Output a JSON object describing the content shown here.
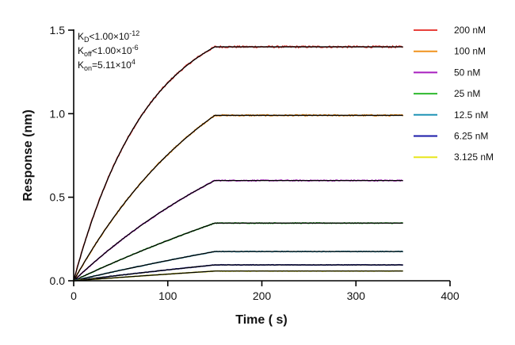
{
  "chart_data": {
    "type": "line",
    "xlabel": "Time ( s)",
    "ylabel": "Response (nm)",
    "xlim": [
      0,
      400
    ],
    "ylim": [
      0,
      1.5
    ],
    "xticks": [
      0,
      100,
      200,
      300,
      400
    ],
    "yticks": [
      0.0,
      0.5,
      1.0,
      1.5
    ],
    "ytick_labels": [
      "0.0",
      "0.5",
      "1.0",
      "1.5"
    ],
    "grid": false,
    "legend_position": "right",
    "association_end": 150,
    "time_end": 350,
    "kinetics": {
      "kd": {
        "prefix": "K",
        "sub": "D",
        "rel": "<",
        "mantissa": "1.00×10",
        "exp": "-12"
      },
      "koff": {
        "prefix": "K",
        "sub": "off",
        "rel": "<",
        "mantissa": "1.00×10",
        "exp": "-6"
      },
      "kon": {
        "prefix": "K",
        "sub": "on",
        "rel": "=",
        "mantissa": "5.11×10",
        "exp": "4"
      }
    },
    "fit_color": "#000000",
    "series": [
      {
        "name": "200 nM",
        "color": "#e8413c",
        "plateau": 1.4,
        "rate": 0.0128
      },
      {
        "name": "100 nM",
        "color": "#f0921e",
        "plateau": 0.99,
        "rate": 0.0062
      },
      {
        "name": "50 nM",
        "color": "#a81fbf",
        "plateau": 0.6,
        "rate": 0.004
      },
      {
        "name": "25 nM",
        "color": "#2eb82e",
        "plateau": 0.345,
        "rate": 0.002
      },
      {
        "name": "12.5 nM",
        "color": "#1f93b5",
        "plateau": 0.175,
        "rate": 0.0016
      },
      {
        "name": "6.25 nM",
        "color": "#1a1aa8",
        "plateau": 0.095,
        "rate": 0.0012
      },
      {
        "name": "3.125 nM",
        "color": "#e8e61c",
        "plateau": 0.058,
        "rate": 0.001
      }
    ]
  }
}
